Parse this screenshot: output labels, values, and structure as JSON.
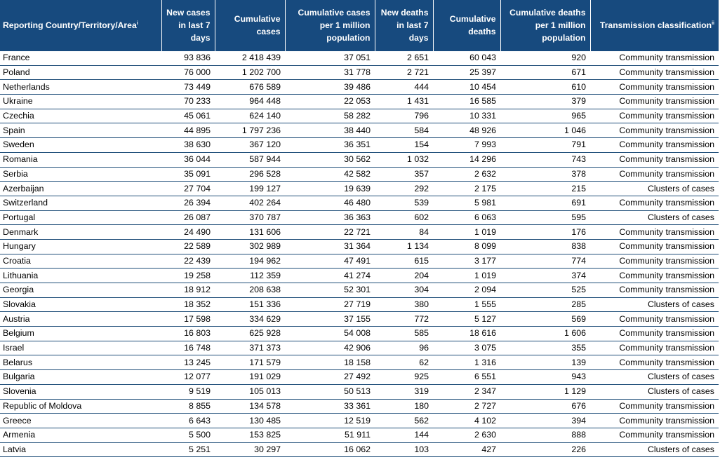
{
  "table": {
    "headers": {
      "country": "Reporting Country/Territory/Area",
      "country_sup": "i",
      "new_cases": "New cases in last 7 days",
      "cum_cases": "Cumulative cases",
      "cum_cases_pm": "Cumulative cases per 1 million population",
      "new_deaths": "New deaths in last 7 days",
      "cum_deaths": "Cumulative deaths",
      "cum_deaths_pm": "Cumulative deaths per 1 million population",
      "classification": "Transmission classification",
      "classification_sup": "ii"
    },
    "rows": [
      [
        "France",
        "93 836",
        "2 418 439",
        "37 051",
        "2 651",
        "60 043",
        "920",
        "Community transmission"
      ],
      [
        "Poland",
        "76 000",
        "1 202 700",
        "31 778",
        "2 721",
        "25 397",
        "671",
        "Community transmission"
      ],
      [
        "Netherlands",
        "73 449",
        "676 589",
        "39 486",
        "444",
        "10 454",
        "610",
        "Community transmission"
      ],
      [
        "Ukraine",
        "70 233",
        "964 448",
        "22 053",
        "1 431",
        "16 585",
        "379",
        "Community transmission"
      ],
      [
        "Czechia",
        "45 061",
        "624 140",
        "58 282",
        "796",
        "10 331",
        "965",
        "Community transmission"
      ],
      [
        "Spain",
        "44 895",
        "1 797 236",
        "38 440",
        "584",
        "48 926",
        "1 046",
        "Community transmission"
      ],
      [
        "Sweden",
        "38 630",
        "367 120",
        "36 351",
        "154",
        "7 993",
        "791",
        "Community transmission"
      ],
      [
        "Romania",
        "36 044",
        "587 944",
        "30 562",
        "1 032",
        "14 296",
        "743",
        "Community transmission"
      ],
      [
        "Serbia",
        "35 091",
        "296 528",
        "42 582",
        "357",
        "2 632",
        "378",
        "Community transmission"
      ],
      [
        "Azerbaijan",
        "27 704",
        "199 127",
        "19 639",
        "292",
        "2 175",
        "215",
        "Clusters of cases"
      ],
      [
        "Switzerland",
        "26 394",
        "402 264",
        "46 480",
        "539",
        "5 981",
        "691",
        "Community transmission"
      ],
      [
        "Portugal",
        "26 087",
        "370 787",
        "36 363",
        "602",
        "6 063",
        "595",
        "Clusters of cases"
      ],
      [
        "Denmark",
        "24 490",
        "131 606",
        "22 721",
        "84",
        "1 019",
        "176",
        "Community transmission"
      ],
      [
        "Hungary",
        "22 589",
        "302 989",
        "31 364",
        "1 134",
        "8 099",
        "838",
        "Community transmission"
      ],
      [
        "Croatia",
        "22 439",
        "194 962",
        "47 491",
        "615",
        "3 177",
        "774",
        "Community transmission"
      ],
      [
        "Lithuania",
        "19 258",
        "112 359",
        "41 274",
        "204",
        "1 019",
        "374",
        "Community transmission"
      ],
      [
        "Georgia",
        "18 912",
        "208 638",
        "52 301",
        "304",
        "2 094",
        "525",
        "Community transmission"
      ],
      [
        "Slovakia",
        "18 352",
        "151 336",
        "27 719",
        "380",
        "1 555",
        "285",
        "Clusters of cases"
      ],
      [
        "Austria",
        "17 598",
        "334 629",
        "37 155",
        "772",
        "5 127",
        "569",
        "Community transmission"
      ],
      [
        "Belgium",
        "16 803",
        "625 928",
        "54 008",
        "585",
        "18 616",
        "1 606",
        "Community transmission"
      ],
      [
        "Israel",
        "16 748",
        "371 373",
        "42 906",
        "96",
        "3 075",
        "355",
        "Community transmission"
      ],
      [
        "Belarus",
        "13 245",
        "171 579",
        "18 158",
        "62",
        "1 316",
        "139",
        "Community transmission"
      ],
      [
        "Bulgaria",
        "12 077",
        "191 029",
        "27 492",
        "925",
        "6 551",
        "943",
        "Clusters of cases"
      ],
      [
        "Slovenia",
        "9 519",
        "105 013",
        "50 513",
        "319",
        "2 347",
        "1 129",
        "Clusters of cases"
      ],
      [
        "Republic of Moldova",
        "8 855",
        "134 578",
        "33 361",
        "180",
        "2 727",
        "676",
        "Community transmission"
      ],
      [
        "Greece",
        "6 643",
        "130 485",
        "12 519",
        "562",
        "4 102",
        "394",
        "Community transmission"
      ],
      [
        "Armenia",
        "5 500",
        "153 825",
        "51 911",
        "144",
        "2 630",
        "888",
        "Community transmission"
      ],
      [
        "Latvia",
        "5 251",
        "30 297",
        "16 062",
        "103",
        "427",
        "226",
        "Clusters of cases"
      ]
    ]
  },
  "colors": {
    "header_bg": "#174A7E",
    "header_text": "#FFFFFF",
    "row_border": "#1F4E79"
  }
}
